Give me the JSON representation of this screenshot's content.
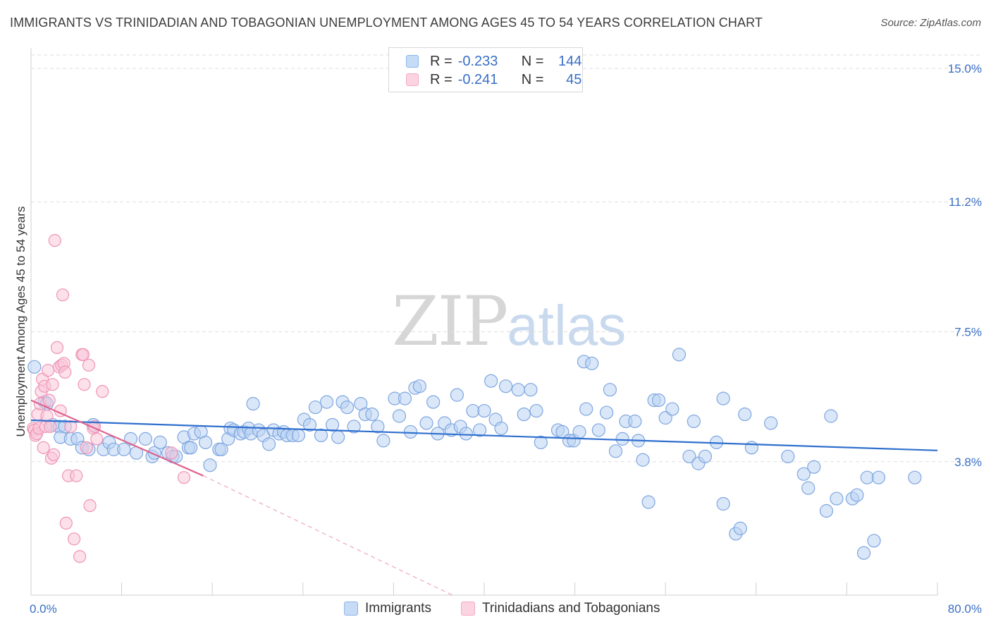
{
  "chart_data": {
    "type": "scatter",
    "title": "IMMIGRANTS VS TRINIDADIAN AND TOBAGONIAN UNEMPLOYMENT AMONG AGES 45 TO 54 YEARS CORRELATION CHART",
    "source": "Source: ZipAtlas.com",
    "xlabel": "",
    "ylabel": "Unemployment Among Ages 45 to 54 years",
    "xlim": [
      0,
      80
    ],
    "ylim": [
      0,
      15
    ],
    "x_tick_labels": [
      "0.0%",
      "80.0%"
    ],
    "y_ticks": [
      3.8,
      7.5,
      11.2,
      15.0
    ],
    "y_tick_labels": [
      "3.8%",
      "7.5%",
      "11.2%",
      "15.0%"
    ],
    "grid": true,
    "watermark": {
      "part1": "ZIP",
      "part2": "atlas"
    },
    "legend": {
      "immigrants": {
        "r_label": "R =",
        "r_value": "-0.233",
        "n_label": "N =",
        "n_value": "144"
      },
      "trinidadians": {
        "r_label": "R =",
        "r_value": "-0.241",
        "n_label": "N =",
        "n_value": "45"
      }
    },
    "series": [
      {
        "name": "Immigrants",
        "color": "#8fb5e8",
        "line_color": "#2f6fce",
        "trend": {
          "x": [
            0,
            80
          ],
          "y": [
            4.98,
            4.12
          ]
        },
        "points": [
          [
            0.3,
            6.5
          ],
          [
            1.2,
            5.5
          ],
          [
            1.4,
            5.45
          ],
          [
            1.9,
            4.85
          ],
          [
            2.5,
            4.8
          ],
          [
            2.6,
            4.5
          ],
          [
            3.0,
            4.8
          ],
          [
            3.5,
            4.45
          ],
          [
            4.1,
            4.45
          ],
          [
            4.5,
            4.2
          ],
          [
            5.1,
            4.15
          ],
          [
            5.5,
            4.85
          ],
          [
            6.4,
            4.15
          ],
          [
            6.9,
            4.35
          ],
          [
            7.3,
            4.15
          ],
          [
            8.2,
            4.15
          ],
          [
            8.8,
            4.45
          ],
          [
            9.3,
            4.05
          ],
          [
            10.1,
            4.45
          ],
          [
            10.7,
            3.95
          ],
          [
            10.9,
            4.05
          ],
          [
            11.4,
            4.35
          ],
          [
            12.1,
            4.05
          ],
          [
            12.5,
            3.95
          ],
          [
            12.8,
            3.95
          ],
          [
            13.5,
            4.5
          ],
          [
            13.9,
            4.2
          ],
          [
            14.1,
            4.2
          ],
          [
            14.4,
            4.6
          ],
          [
            15.0,
            4.65
          ],
          [
            15.4,
            4.35
          ],
          [
            15.8,
            3.7
          ],
          [
            16.6,
            4.15
          ],
          [
            16.8,
            4.15
          ],
          [
            17.4,
            4.45
          ],
          [
            17.6,
            4.75
          ],
          [
            17.9,
            4.7
          ],
          [
            18.5,
            4.6
          ],
          [
            18.8,
            4.65
          ],
          [
            19.2,
            4.75
          ],
          [
            19.4,
            4.6
          ],
          [
            19.6,
            5.45
          ],
          [
            20.1,
            4.7
          ],
          [
            20.5,
            4.55
          ],
          [
            21.0,
            4.3
          ],
          [
            21.4,
            4.7
          ],
          [
            21.9,
            4.6
          ],
          [
            22.3,
            4.65
          ],
          [
            22.6,
            4.55
          ],
          [
            23.1,
            4.55
          ],
          [
            23.6,
            4.55
          ],
          [
            24.1,
            5.0
          ],
          [
            24.6,
            4.85
          ],
          [
            25.1,
            5.35
          ],
          [
            25.6,
            4.55
          ],
          [
            26.1,
            5.5
          ],
          [
            26.6,
            4.85
          ],
          [
            27.1,
            4.5
          ],
          [
            27.5,
            5.5
          ],
          [
            27.9,
            5.35
          ],
          [
            28.5,
            4.8
          ],
          [
            29.1,
            5.45
          ],
          [
            29.5,
            5.15
          ],
          [
            30.1,
            5.15
          ],
          [
            30.6,
            4.8
          ],
          [
            31.1,
            4.4
          ],
          [
            32.1,
            5.6
          ],
          [
            32.5,
            5.1
          ],
          [
            33.0,
            5.6
          ],
          [
            33.5,
            4.65
          ],
          [
            33.9,
            5.9
          ],
          [
            34.3,
            5.95
          ],
          [
            34.9,
            4.9
          ],
          [
            35.5,
            5.5
          ],
          [
            35.9,
            4.6
          ],
          [
            36.5,
            4.9
          ],
          [
            37.1,
            4.7
          ],
          [
            37.6,
            5.7
          ],
          [
            37.9,
            4.8
          ],
          [
            38.4,
            4.6
          ],
          [
            39.0,
            5.25
          ],
          [
            39.6,
            4.7
          ],
          [
            40.0,
            5.25
          ],
          [
            40.6,
            6.1
          ],
          [
            41.0,
            5.0
          ],
          [
            41.5,
            4.75
          ],
          [
            41.9,
            5.95
          ],
          [
            43.0,
            5.85
          ],
          [
            43.5,
            5.15
          ],
          [
            44.1,
            5.85
          ],
          [
            44.6,
            5.25
          ],
          [
            45.0,
            4.35
          ],
          [
            46.5,
            4.7
          ],
          [
            46.9,
            4.65
          ],
          [
            47.5,
            4.4
          ],
          [
            47.9,
            4.4
          ],
          [
            48.4,
            4.65
          ],
          [
            49.0,
            5.3
          ],
          [
            48.8,
            6.65
          ],
          [
            49.5,
            6.6
          ],
          [
            50.1,
            4.7
          ],
          [
            50.8,
            5.2
          ],
          [
            51.1,
            5.85
          ],
          [
            51.6,
            4.1
          ],
          [
            52.2,
            4.45
          ],
          [
            52.5,
            4.95
          ],
          [
            53.3,
            4.95
          ],
          [
            53.6,
            4.4
          ],
          [
            54.0,
            3.85
          ],
          [
            54.5,
            2.65
          ],
          [
            55.0,
            5.55
          ],
          [
            55.4,
            5.55
          ],
          [
            56.0,
            5.05
          ],
          [
            56.6,
            5.3
          ],
          [
            57.2,
            6.85
          ],
          [
            58.1,
            3.95
          ],
          [
            58.5,
            4.95
          ],
          [
            58.9,
            3.75
          ],
          [
            59.5,
            3.95
          ],
          [
            60.5,
            4.35
          ],
          [
            61.1,
            5.6
          ],
          [
            61.1,
            2.6
          ],
          [
            62.2,
            1.75
          ],
          [
            62.6,
            1.9
          ],
          [
            63.0,
            5.15
          ],
          [
            63.6,
            4.2
          ],
          [
            65.3,
            4.9
          ],
          [
            66.8,
            3.95
          ],
          [
            68.2,
            3.45
          ],
          [
            68.6,
            3.05
          ],
          [
            69.1,
            3.65
          ],
          [
            70.2,
            2.4
          ],
          [
            70.6,
            5.1
          ],
          [
            71.1,
            2.75
          ],
          [
            72.5,
            2.75
          ],
          [
            72.9,
            2.85
          ],
          [
            73.5,
            1.2
          ],
          [
            73.8,
            3.35
          ],
          [
            74.4,
            1.55
          ],
          [
            74.8,
            3.35
          ],
          [
            78.0,
            3.35
          ]
        ]
      },
      {
        "name": "Trinidadians and Tobagonians",
        "color": "#f5a9c4",
        "line_color": "#e0638f",
        "trend": {
          "x": [
            0,
            15.2
          ],
          "y": [
            5.55,
            3.4
          ]
        },
        "trend_dashed": {
          "x": [
            15.2,
            37.2
          ],
          "y": [
            3.4,
            0.0
          ]
        },
        "points": [
          [
            0.2,
            4.75
          ],
          [
            0.3,
            4.7
          ],
          [
            0.4,
            4.55
          ],
          [
            0.5,
            4.6
          ],
          [
            0.6,
            5.15
          ],
          [
            0.7,
            4.75
          ],
          [
            0.8,
            5.45
          ],
          [
            0.9,
            5.8
          ],
          [
            1.0,
            6.15
          ],
          [
            1.1,
            4.2
          ],
          [
            1.2,
            5.95
          ],
          [
            1.3,
            4.8
          ],
          [
            1.4,
            5.1
          ],
          [
            1.5,
            6.4
          ],
          [
            1.6,
            5.55
          ],
          [
            1.7,
            4.8
          ],
          [
            1.8,
            3.9
          ],
          [
            1.9,
            6.0
          ],
          [
            2.0,
            4.0
          ],
          [
            2.1,
            10.1
          ],
          [
            2.3,
            7.05
          ],
          [
            2.5,
            6.5
          ],
          [
            2.6,
            5.25
          ],
          [
            2.7,
            6.55
          ],
          [
            2.8,
            8.55
          ],
          [
            2.9,
            6.6
          ],
          [
            3.0,
            6.35
          ],
          [
            3.1,
            2.05
          ],
          [
            3.3,
            3.4
          ],
          [
            3.5,
            4.8
          ],
          [
            3.8,
            1.6
          ],
          [
            4.0,
            3.4
          ],
          [
            4.3,
            1.1
          ],
          [
            4.5,
            6.85
          ],
          [
            4.6,
            6.85
          ],
          [
            4.7,
            6.0
          ],
          [
            4.9,
            4.2
          ],
          [
            5.1,
            6.55
          ],
          [
            5.2,
            2.55
          ],
          [
            5.5,
            4.75
          ],
          [
            5.6,
            4.8
          ],
          [
            5.8,
            4.45
          ],
          [
            6.3,
            5.8
          ],
          [
            12.4,
            4.05
          ],
          [
            13.5,
            3.35
          ]
        ]
      }
    ]
  },
  "bottom_legend": {
    "item1": "Immigrants",
    "item2": "Trinidadians and Tobagonians"
  }
}
